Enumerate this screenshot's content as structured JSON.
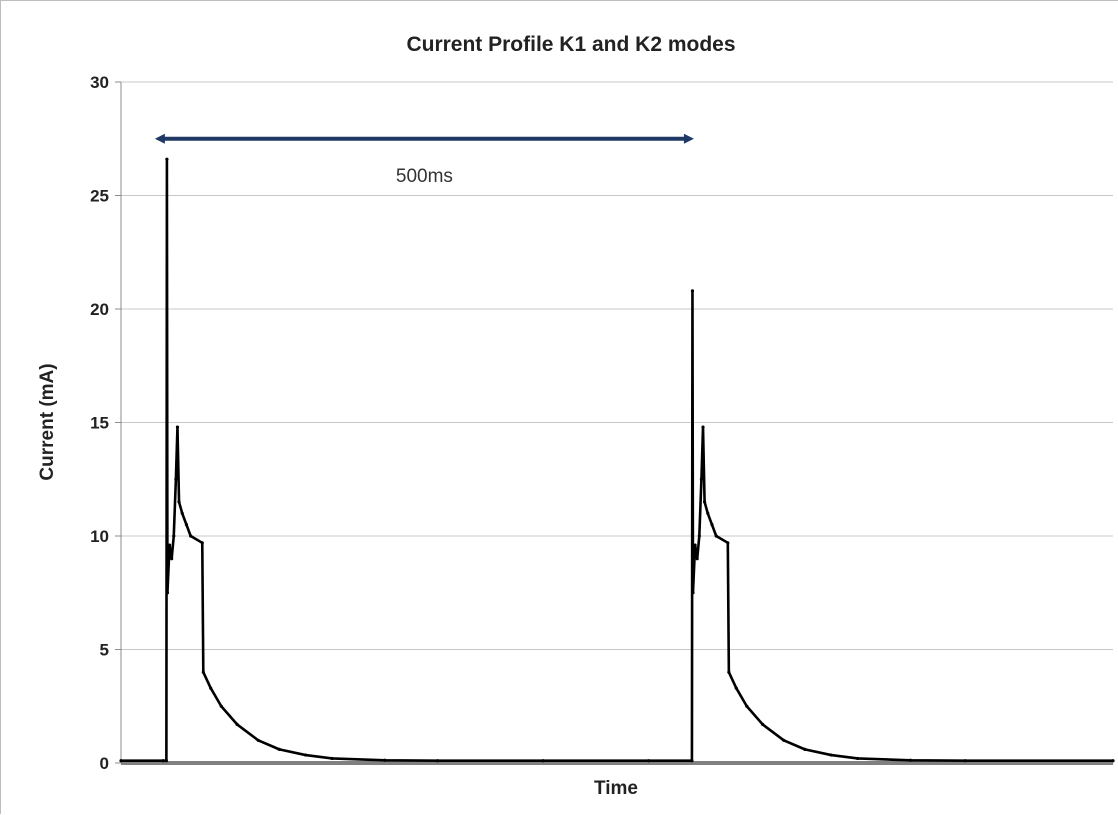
{
  "chart_data": {
    "type": "line",
    "title": "Current Profile K1 and K2 modes",
    "xlabel": "Time",
    "ylabel": "Current (mA)",
    "ylim": [
      0,
      30
    ],
    "yticks": [
      0,
      5,
      10,
      15,
      20,
      25,
      30
    ],
    "grid": "horizontal",
    "x_unit": "ms",
    "xlim": [
      0,
      940
    ],
    "series": [
      {
        "color": "#000000",
        "points": [
          [
            0,
            0.1
          ],
          [
            40,
            0.1
          ],
          [
            43,
            0.1
          ],
          [
            43.5,
            26.6
          ],
          [
            44,
            7.5
          ],
          [
            46,
            9.6
          ],
          [
            48,
            9.0
          ],
          [
            50,
            10.0
          ],
          [
            52,
            12.5
          ],
          [
            53.5,
            14.8
          ],
          [
            55,
            11.5
          ],
          [
            58,
            11.0
          ],
          [
            62,
            10.5
          ],
          [
            66,
            10.0
          ],
          [
            77,
            9.7
          ],
          [
            78,
            4.0
          ],
          [
            85,
            3.3
          ],
          [
            95,
            2.5
          ],
          [
            110,
            1.7
          ],
          [
            130,
            1.0
          ],
          [
            150,
            0.6
          ],
          [
            175,
            0.35
          ],
          [
            200,
            0.2
          ],
          [
            250,
            0.12
          ],
          [
            300,
            0.1
          ],
          [
            400,
            0.1
          ],
          [
            500,
            0.1
          ],
          [
            541,
            0.1
          ],
          [
            541.5,
            20.8
          ],
          [
            542,
            7.5
          ],
          [
            544,
            9.6
          ],
          [
            546,
            9.0
          ],
          [
            548,
            10.0
          ],
          [
            550,
            12.5
          ],
          [
            551.5,
            14.8
          ],
          [
            553,
            11.5
          ],
          [
            556,
            11.0
          ],
          [
            560,
            10.5
          ],
          [
            564,
            10.0
          ],
          [
            575,
            9.7
          ],
          [
            576,
            4.0
          ],
          [
            583,
            3.3
          ],
          [
            593,
            2.5
          ],
          [
            608,
            1.7
          ],
          [
            628,
            1.0
          ],
          [
            648,
            0.6
          ],
          [
            673,
            0.35
          ],
          [
            698,
            0.2
          ],
          [
            748,
            0.12
          ],
          [
            800,
            0.1
          ],
          [
            940,
            0.1
          ]
        ]
      }
    ],
    "baseline": {
      "value": 0,
      "color": "#808080"
    },
    "annotation": {
      "text": "500ms",
      "x_start": 34,
      "x_end": 541,
      "y": 27.5,
      "color": "#1f3864"
    }
  }
}
